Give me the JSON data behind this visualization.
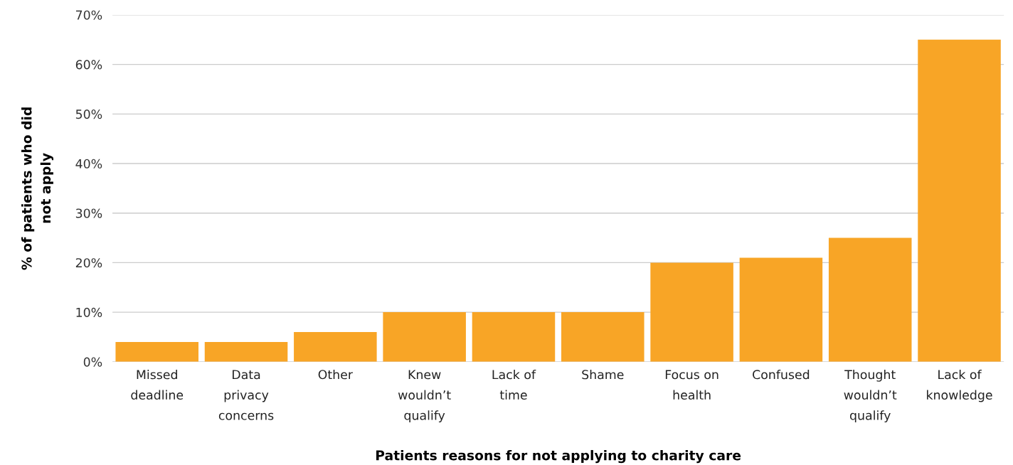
{
  "chart_data": {
    "type": "bar",
    "xlabel": "Patients reasons for not applying to charity care",
    "ylabel": "% of patients who did\nnot apply",
    "categories": [
      "Missed\ndeadline",
      "Data\nprivacy\nconcerns",
      "Other",
      "Knew\nwouldn’t\nqualify",
      "Lack of\ntime",
      "Shame",
      "Focus on\nhealth",
      "Confused",
      "Thought\nwouldn’t\nqualify",
      "Lack of\nknowledge"
    ],
    "values": [
      4,
      4,
      6,
      10,
      10,
      10,
      20,
      21,
      25,
      65
    ],
    "color": "#f8a526",
    "ylim": [
      0,
      70
    ],
    "yticks": [
      {
        "value": 0,
        "label": "0%"
      },
      {
        "value": 10,
        "label": "10%"
      },
      {
        "value": 20,
        "label": "20%"
      },
      {
        "value": 30,
        "label": "30%"
      },
      {
        "value": 40,
        "label": "40%"
      },
      {
        "value": 50,
        "label": "50%"
      },
      {
        "value": 60,
        "label": "60%"
      },
      {
        "value": 70,
        "label": "70%"
      }
    ],
    "grid": "y"
  }
}
